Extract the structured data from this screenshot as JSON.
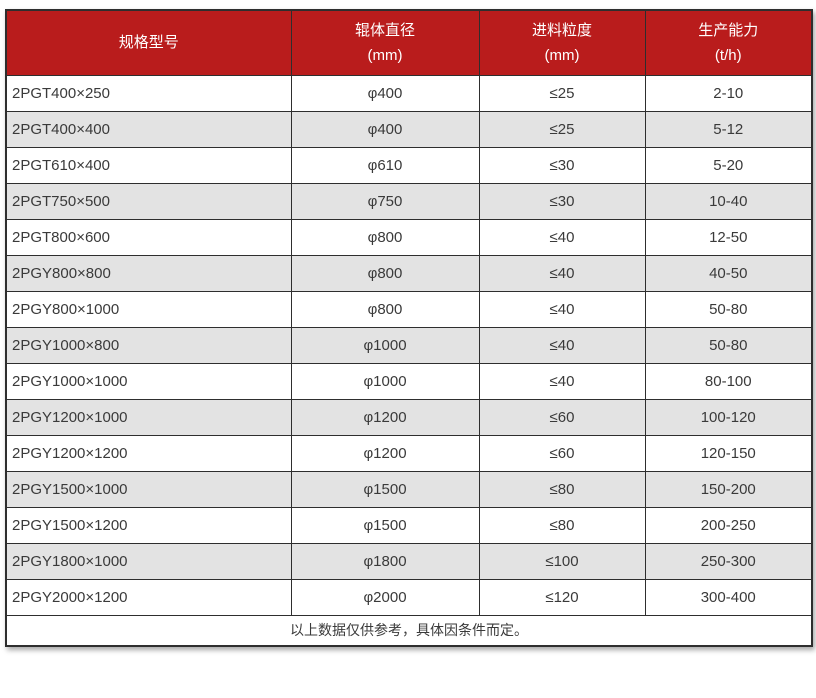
{
  "table": {
    "columns": [
      {
        "label": "规格型号",
        "unit": ""
      },
      {
        "label": "辊体直径",
        "unit": "(mm)"
      },
      {
        "label": "进料粒度",
        "unit": "(mm)"
      },
      {
        "label": "生产能力",
        "unit": "(t/h)"
      }
    ],
    "rows": [
      [
        "2PGT400×250",
        "φ400",
        "≤25",
        "2-10"
      ],
      [
        "2PGT400×400",
        "φ400",
        "≤25",
        "5-12"
      ],
      [
        "2PGT610×400",
        "φ610",
        "≤30",
        "5-20"
      ],
      [
        "2PGT750×500",
        "φ750",
        "≤30",
        "10-40"
      ],
      [
        "2PGT800×600",
        "φ800",
        "≤40",
        "12-50"
      ],
      [
        "2PGY800×800",
        "φ800",
        "≤40",
        "40-50"
      ],
      [
        "2PGY800×1000",
        "φ800",
        "≤40",
        "50-80"
      ],
      [
        "2PGY1000×800",
        "φ1000",
        "≤40",
        "50-80"
      ],
      [
        "2PGY1000×1000",
        "φ1000",
        "≤40",
        "80-100"
      ],
      [
        "2PGY1200×1000",
        "φ1200",
        "≤60",
        "100-120"
      ],
      [
        "2PGY1200×1200",
        "φ1200",
        "≤60",
        "120-150"
      ],
      [
        "2PGY1500×1000",
        "φ1500",
        "≤80",
        "150-200"
      ],
      [
        "2PGY1500×1200",
        "φ1500",
        "≤80",
        "200-250"
      ],
      [
        "2PGY1800×1000",
        "φ1800",
        "≤100",
        "250-300"
      ],
      [
        "2PGY2000×1200",
        "φ2000",
        "≤120",
        "300-400"
      ]
    ],
    "footnote": "以上数据仅供参考，具体因条件而定。"
  },
  "colors": {
    "header_bg": "#b91c1c",
    "header_text": "#ffffff",
    "row_alt_bg": "#e3e3e3",
    "border": "#2e2e2e",
    "body_text": "#3a3a3a"
  }
}
